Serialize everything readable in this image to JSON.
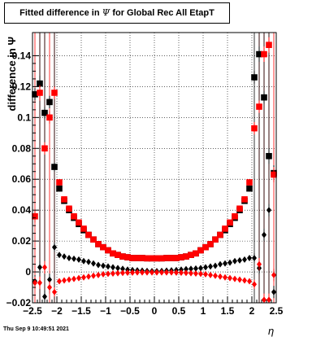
{
  "title": {
    "text_before": "Fitted difference in ",
    "symbol": "Ψ",
    "text_after": " for Global Rec All EtapT"
  },
  "timestamp": "Thu Sep  9 10:49:51 2021",
  "chart_data": {
    "type": "scatter",
    "xlabel": "η",
    "ylabel": "difference in  Ψ",
    "xlim": [
      -2.5,
      2.5
    ],
    "ylim": [
      -0.02,
      0.155
    ],
    "x_ticks": [
      -2.5,
      -2,
      -1.5,
      -1,
      -0.5,
      0,
      0.5,
      1,
      1.5,
      2,
      2.5
    ],
    "x_tick_labels": [
      "−2.5",
      "−2",
      "−1.5",
      "−1",
      "−0.5",
      "0",
      "0.5",
      "1",
      "1.5",
      "2",
      "2.5"
    ],
    "y_ticks": [
      -0.02,
      0,
      0.02,
      0.04,
      0.06,
      0.08,
      0.1,
      0.12,
      0.14
    ],
    "y_tick_labels": [
      "−0.02",
      "0",
      "0.02",
      "0.04",
      "0.06",
      "0.08",
      "0.1",
      "0.12",
      "0.14"
    ],
    "grid": true,
    "colors": {
      "black": "#000000",
      "red": "#ff0000"
    },
    "series": [
      {
        "color": "black",
        "marker": "square",
        "x": [
          -2.45,
          -2.35,
          -2.25,
          -2.15,
          -2.05,
          -1.95,
          -1.85,
          -1.75,
          -1.65,
          -1.55,
          -1.45,
          -1.35,
          -1.25,
          -1.15,
          -1.05,
          -0.95,
          -0.85,
          -0.75,
          -0.65,
          -0.55,
          -0.45,
          -0.35,
          -0.25,
          -0.15,
          -0.05,
          0.05,
          0.15,
          0.25,
          0.35,
          0.45,
          0.55,
          0.65,
          0.75,
          0.85,
          0.95,
          1.05,
          1.15,
          1.25,
          1.35,
          1.45,
          1.55,
          1.65,
          1.75,
          1.85,
          1.95,
          2.05,
          2.15,
          2.25,
          2.35,
          2.45
        ],
        "y": [
          0.115,
          0.122,
          0.103,
          0.11,
          0.068,
          0.054,
          0.046,
          0.04,
          0.035,
          0.031,
          0.027,
          0.024,
          0.021,
          0.018,
          0.016,
          0.014,
          0.012,
          0.011,
          0.01,
          0.0095,
          0.009,
          0.009,
          0.009,
          0.0088,
          0.0088,
          0.0088,
          0.0088,
          0.009,
          0.009,
          0.009,
          0.0095,
          0.01,
          0.011,
          0.012,
          0.014,
          0.016,
          0.018,
          0.021,
          0.024,
          0.027,
          0.031,
          0.035,
          0.04,
          0.046,
          0.054,
          0.126,
          0.141,
          0.113,
          0.075,
          0.064
        ],
        "error": [
          0.004,
          0.005,
          0.004,
          0.004,
          0.003,
          0.002,
          0.0015,
          0.0012,
          0.001,
          0.001,
          0.0008,
          0.0008,
          0.0007,
          0.0006,
          0.0005,
          0.0005,
          0.0004,
          0.0004,
          0.0004,
          0.0004,
          0.0003,
          0.0003,
          0.0003,
          0.0003,
          0.0003,
          0.0003,
          0.0003,
          0.0003,
          0.0003,
          0.0003,
          0.0004,
          0.0004,
          0.0004,
          0.0004,
          0.0005,
          0.0005,
          0.0006,
          0.0007,
          0.0008,
          0.0008,
          0.001,
          0.001,
          0.0012,
          0.0015,
          0.002,
          0.004,
          0.005,
          0.004,
          0.005,
          0.005
        ]
      },
      {
        "color": "red",
        "marker": "square",
        "x": [
          -2.45,
          -2.35,
          -2.25,
          -2.15,
          -2.05,
          -1.95,
          -1.85,
          -1.75,
          -1.65,
          -1.55,
          -1.45,
          -1.35,
          -1.25,
          -1.15,
          -1.05,
          -0.95,
          -0.85,
          -0.75,
          -0.65,
          -0.55,
          -0.45,
          -0.35,
          -0.25,
          -0.15,
          -0.05,
          0.05,
          0.15,
          0.25,
          0.35,
          0.45,
          0.55,
          0.65,
          0.75,
          0.85,
          0.95,
          1.05,
          1.15,
          1.25,
          1.35,
          1.45,
          1.55,
          1.65,
          1.75,
          1.85,
          1.95,
          2.05,
          2.15,
          2.25,
          2.35,
          2.45
        ],
        "y": [
          0.036,
          0.116,
          0.08,
          0.1,
          0.116,
          0.058,
          0.047,
          0.041,
          0.036,
          0.032,
          0.028,
          0.024,
          0.021,
          0.018,
          0.016,
          0.014,
          0.012,
          0.011,
          0.01,
          0.0095,
          0.009,
          0.009,
          0.009,
          0.0088,
          0.0088,
          0.0088,
          0.0088,
          0.009,
          0.009,
          0.009,
          0.0095,
          0.01,
          0.011,
          0.012,
          0.014,
          0.016,
          0.018,
          0.021,
          0.024,
          0.028,
          0.032,
          0.036,
          0.041,
          0.047,
          0.058,
          0.093,
          0.107,
          0.141,
          0.147,
          0.063
        ],
        "error": [
          0.004,
          0.005,
          0.004,
          0.004,
          0.004,
          0.002,
          0.0015,
          0.0012,
          0.001,
          0.001,
          0.0008,
          0.0008,
          0.0007,
          0.0006,
          0.0005,
          0.0005,
          0.0004,
          0.0004,
          0.0004,
          0.0004,
          0.0003,
          0.0003,
          0.0003,
          0.0003,
          0.0003,
          0.0003,
          0.0003,
          0.0003,
          0.0003,
          0.0003,
          0.0004,
          0.0004,
          0.0004,
          0.0004,
          0.0005,
          0.0005,
          0.0006,
          0.0007,
          0.0008,
          0.0008,
          0.001,
          0.001,
          0.0012,
          0.0015,
          0.002,
          0.004,
          0.004,
          0.005,
          0.005,
          0.005
        ]
      },
      {
        "color": "black",
        "marker": "diamond",
        "x": [
          -2.45,
          -2.35,
          -2.25,
          -2.15,
          -2.05,
          -1.95,
          -1.85,
          -1.75,
          -1.65,
          -1.55,
          -1.45,
          -1.35,
          -1.25,
          -1.15,
          -1.05,
          -0.95,
          -0.85,
          -0.75,
          -0.65,
          -0.55,
          -0.45,
          -0.35,
          -0.25,
          -0.15,
          -0.05,
          0.05,
          0.15,
          0.25,
          0.35,
          0.45,
          0.55,
          0.65,
          0.75,
          0.85,
          0.95,
          1.05,
          1.15,
          1.25,
          1.35,
          1.45,
          1.55,
          1.65,
          1.75,
          1.85,
          1.95,
          2.05,
          2.15,
          2.25,
          2.35,
          2.45
        ],
        "y": [
          -0.006,
          0.003,
          -0.016,
          -0.005,
          0.016,
          0.011,
          0.01,
          0.009,
          0.0085,
          0.008,
          0.007,
          0.0065,
          0.0055,
          0.0045,
          0.004,
          0.0035,
          0.003,
          0.0025,
          0.002,
          0.0015,
          0.0012,
          0.001,
          0.0008,
          0.0006,
          0.0005,
          0.0005,
          0.0006,
          0.0008,
          0.001,
          0.0012,
          0.0015,
          0.0018,
          0.002,
          0.0022,
          0.0025,
          0.003,
          0.0035,
          0.004,
          0.005,
          0.0055,
          0.006,
          0.007,
          0.0075,
          0.008,
          0.009,
          0.009,
          0.0025,
          0.024,
          0.04,
          -0.013
        ],
        "error": [
          0.004,
          0.004,
          0.004,
          0.004,
          0.003,
          0.0015,
          0.001,
          0.001,
          0.0008,
          0.0008,
          0.0006,
          0.0006,
          0.0005,
          0.0005,
          0.0004,
          0.0004,
          0.0004,
          0.0003,
          0.0003,
          0.0003,
          0.0003,
          0.0003,
          0.0003,
          0.0003,
          0.0003,
          0.0003,
          0.0003,
          0.0003,
          0.0003,
          0.0003,
          0.0003,
          0.0003,
          0.0003,
          0.0004,
          0.0004,
          0.0004,
          0.0005,
          0.0005,
          0.0006,
          0.0006,
          0.0008,
          0.0008,
          0.001,
          0.001,
          0.0015,
          0.003,
          0.004,
          0.004,
          0.004,
          0.004
        ]
      },
      {
        "color": "red",
        "marker": "diamond",
        "x": [
          -2.45,
          -2.35,
          -2.25,
          -2.15,
          -2.05,
          -1.95,
          -1.85,
          -1.75,
          -1.65,
          -1.55,
          -1.45,
          -1.35,
          -1.25,
          -1.15,
          -1.05,
          -0.95,
          -0.85,
          -0.75,
          -0.65,
          -0.55,
          -0.45,
          -0.35,
          -0.25,
          -0.15,
          -0.05,
          0.05,
          0.15,
          0.25,
          0.35,
          0.45,
          0.55,
          0.65,
          0.75,
          0.85,
          0.95,
          1.05,
          1.15,
          1.25,
          1.35,
          1.45,
          1.55,
          1.65,
          1.75,
          1.85,
          1.95,
          2.05,
          2.15,
          2.25,
          2.35,
          2.45
        ],
        "y": [
          -0.007,
          -0.007,
          0.003,
          -0.01,
          -0.013,
          -0.006,
          -0.0055,
          -0.005,
          -0.0045,
          -0.004,
          -0.0035,
          -0.003,
          -0.0025,
          -0.002,
          -0.0015,
          -0.0012,
          -0.001,
          -0.0008,
          -0.0006,
          -0.0005,
          -0.0004,
          -0.0003,
          -0.0003,
          -0.0003,
          -0.0003,
          -0.0003,
          -0.0003,
          -0.0003,
          -0.0003,
          -0.0004,
          -0.0005,
          -0.0006,
          -0.0008,
          -0.001,
          -0.0012,
          -0.0015,
          -0.002,
          -0.0025,
          -0.003,
          -0.0035,
          -0.004,
          -0.0045,
          -0.005,
          -0.0055,
          -0.006,
          -0.008,
          0.005,
          -0.018,
          -0.018,
          -0.002
        ],
        "error": [
          0.004,
          0.004,
          0.004,
          0.004,
          0.003,
          0.0015,
          0.001,
          0.001,
          0.0008,
          0.0008,
          0.0006,
          0.0006,
          0.0005,
          0.0005,
          0.0004,
          0.0004,
          0.0004,
          0.0003,
          0.0003,
          0.0003,
          0.0003,
          0.0003,
          0.0003,
          0.0003,
          0.0003,
          0.0003,
          0.0003,
          0.0003,
          0.0003,
          0.0003,
          0.0003,
          0.0003,
          0.0003,
          0.0004,
          0.0004,
          0.0004,
          0.0005,
          0.0005,
          0.0006,
          0.0006,
          0.0008,
          0.0008,
          0.001,
          0.001,
          0.0015,
          0.003,
          0.004,
          0.004,
          0.004,
          0.004
        ]
      }
    ],
    "wide_error_bars": [
      {
        "color": "red",
        "x": [
          -2.45,
          -2.35,
          -2.25,
          -2.15,
          -2.05,
          2.15,
          2.25,
          2.35,
          2.45
        ]
      },
      {
        "color": "black",
        "x": [
          -2.35,
          -2.25,
          -2.05,
          2.05,
          2.15,
          2.25,
          2.35
        ]
      }
    ]
  }
}
